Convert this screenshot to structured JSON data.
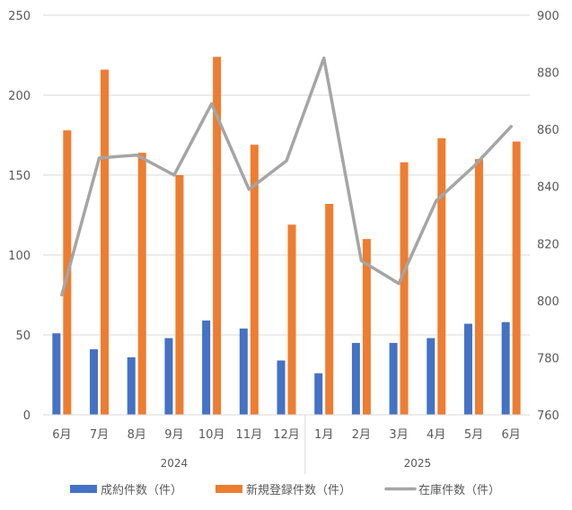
{
  "chart_data": {
    "type": "bar",
    "categories": [
      "6月",
      "7月",
      "8月",
      "9月",
      "10月",
      "11月",
      "12月",
      "1月",
      "2月",
      "3月",
      "4月",
      "5月",
      "6月"
    ],
    "year_groups": [
      {
        "label": "2024",
        "start": 0,
        "end": 6
      },
      {
        "label": "2025",
        "start": 7,
        "end": 12
      }
    ],
    "series": [
      {
        "name": "成約件数（件）",
        "type": "bar",
        "axis": "left",
        "color": "#4472C4",
        "values": [
          51,
          41,
          36,
          48,
          59,
          54,
          34,
          26,
          45,
          45,
          48,
          57,
          58
        ]
      },
      {
        "name": "新規登録件数（件）",
        "type": "bar",
        "axis": "left",
        "color": "#ED7D31",
        "values": [
          178,
          216,
          164,
          150,
          224,
          169,
          119,
          132,
          110,
          158,
          173,
          160,
          171
        ]
      },
      {
        "name": "在庫件数（件）",
        "type": "line",
        "axis": "right",
        "color": "#A5A5A5",
        "values": [
          802,
          850,
          851,
          844,
          869,
          839,
          849,
          885,
          814,
          806,
          835,
          847,
          861
        ]
      }
    ],
    "y_left": {
      "min": 0,
      "max": 250,
      "ticks": [
        0,
        50,
        100,
        150,
        200,
        250
      ]
    },
    "y_right": {
      "min": 760,
      "max": 900,
      "ticks": [
        760,
        780,
        800,
        820,
        840,
        860,
        880,
        900
      ]
    },
    "grid": true,
    "legend_position": "bottom"
  }
}
